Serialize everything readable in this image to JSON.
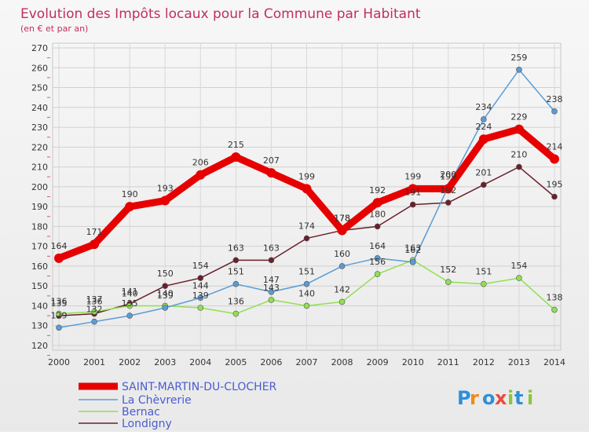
{
  "chart_data": {
    "type": "line",
    "title": "Evolution des Impôts locaux pour la Commune par Habitant",
    "subtitle": "(en € et par an)",
    "x": [
      "2000",
      "2001",
      "2002",
      "2003",
      "2004",
      "2005",
      "2006",
      "2007",
      "2008",
      "2009",
      "2010",
      "2011",
      "2012",
      "2013",
      "2014"
    ],
    "ylim": [
      120,
      270
    ],
    "yticks": [
      120,
      130,
      140,
      150,
      160,
      170,
      180,
      190,
      200,
      210,
      220,
      230,
      240,
      250,
      260,
      270
    ],
    "grid": true,
    "legend_position": "bottom-left",
    "series": [
      {
        "name": "SAINT-MARTIN-DU-CLOCHER",
        "color": "#e60000",
        "values": [
          164,
          171,
          190,
          193,
          206,
          215,
          207,
          199,
          178,
          192,
          199,
          199,
          224,
          229,
          214
        ]
      },
      {
        "name": "La Chèvrerie",
        "color": "#5b9bd5",
        "values": [
          129,
          132,
          135,
          139,
          144,
          151,
          147,
          151,
          160,
          164,
          162,
          200,
          234,
          259,
          238
        ]
      },
      {
        "name": "Bernac",
        "color": "#90e050",
        "values": [
          136,
          137,
          140,
          140,
          139,
          136,
          143,
          140,
          142,
          156,
          163,
          152,
          151,
          154,
          138
        ]
      },
      {
        "name": "Londigny",
        "color": "#6b1f2a",
        "values": [
          135,
          136,
          141,
          150,
          154,
          163,
          163,
          174,
          178,
          180,
          191,
          192,
          201,
          210,
          195
        ]
      }
    ]
  },
  "branding": {
    "logo_text": "Proxiti"
  }
}
